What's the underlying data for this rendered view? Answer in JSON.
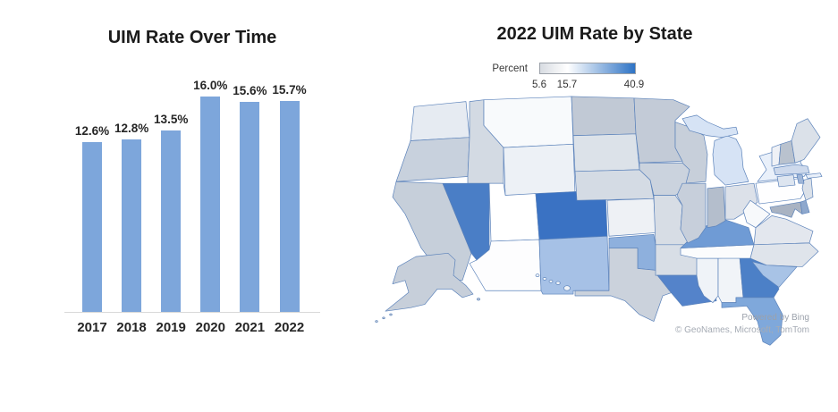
{
  "bar_chart": {
    "title": "UIM Rate Over Time"
  },
  "map": {
    "title": "2022 UIM Rate by State"
  },
  "chart_data": [
    {
      "type": "bar",
      "title": "UIM Rate Over Time",
      "categories": [
        "2017",
        "2018",
        "2019",
        "2020",
        "2021",
        "2022"
      ],
      "values": [
        12.6,
        12.8,
        13.5,
        16.0,
        15.6,
        15.7
      ],
      "data_labels": [
        "12.6%",
        "12.8%",
        "13.5%",
        "16.0%",
        "15.6%",
        "15.7%"
      ],
      "xlabel": "",
      "ylabel": "",
      "ylim": [
        0,
        17
      ],
      "grid": false,
      "y_axis_shown": false,
      "bar_color": "#7da6db",
      "axis_line_color": "#d9d9d9"
    },
    {
      "type": "heatmap",
      "subtype": "choropleth-us-states",
      "title": "2022 UIM Rate by State",
      "legend": {
        "label": "Percent",
        "min": 5.6,
        "mid": 15.7,
        "max": 40.9,
        "position": "top-left",
        "gradient": [
          "#d8dce2",
          "#ffffff",
          "#2e73c5"
        ],
        "mid_position_pct": 29
      },
      "attribution_line1": "Powered by Bing",
      "attribution_line2": "© GeoNames, Microsoft, TomTom",
      "state_colors": [
        {
          "id": "WA",
          "color": "#e6ebf2"
        },
        {
          "id": "OR",
          "color": "#c8d1dd"
        },
        {
          "id": "CA",
          "color": "#c6cfda"
        },
        {
          "id": "ID",
          "color": "#d3dae3"
        },
        {
          "id": "MT",
          "color": "#f8fafc"
        },
        {
          "id": "WY",
          "color": "#edf1f6"
        },
        {
          "id": "NV",
          "color": "#4a7ec6"
        },
        {
          "id": "UT",
          "color": "#ffffff"
        },
        {
          "id": "CO",
          "color": "#3a72c3"
        },
        {
          "id": "AZ",
          "color": "#fdfdfe"
        },
        {
          "id": "NM",
          "color": "#a6c1e6"
        },
        {
          "id": "ND",
          "color": "#c1c9d5"
        },
        {
          "id": "SD",
          "color": "#dce2e9"
        },
        {
          "id": "NE",
          "color": "#d4dbe4"
        },
        {
          "id": "KS",
          "color": "#eef1f5"
        },
        {
          "id": "OK",
          "color": "#8eb0dd"
        },
        {
          "id": "TX",
          "color": "#cbd2dc"
        },
        {
          "id": "MN",
          "color": "#c3cbd7"
        },
        {
          "id": "WI",
          "color": "#c7cfda"
        },
        {
          "id": "IA",
          "color": "#cbd3de"
        },
        {
          "id": "MO",
          "color": "#d7dde5"
        },
        {
          "id": "AR",
          "color": "#d8dee6"
        },
        {
          "id": "LA",
          "color": "#5483ca"
        },
        {
          "id": "MS",
          "color": "#eff3f8"
        },
        {
          "id": "AL",
          "color": "#f1f4f8"
        },
        {
          "id": "GA",
          "color": "#4c80c7"
        },
        {
          "id": "FL",
          "color": "#7fa8db"
        },
        {
          "id": "TN",
          "color": "#fbfcfd"
        },
        {
          "id": "KY",
          "color": "#6f9bd5"
        },
        {
          "id": "IL",
          "color": "#c7cfdb"
        },
        {
          "id": "IN",
          "color": "#b4becc"
        },
        {
          "id": "OH",
          "color": "#dce1e9"
        },
        {
          "id": "MI",
          "color": "#d6e3f5"
        },
        {
          "id": "WV",
          "color": "#f7f9fb"
        },
        {
          "id": "VA",
          "color": "#e3e7ee"
        },
        {
          "id": "NC",
          "color": "#dfe4eb"
        },
        {
          "id": "SC",
          "color": "#a8c3e6"
        },
        {
          "id": "PA",
          "color": "#fefeff"
        },
        {
          "id": "NY",
          "color": "#e9f0fa"
        },
        {
          "id": "NJ",
          "color": "#dbe1e9"
        },
        {
          "id": "MD",
          "color": "#a9b3c2"
        },
        {
          "id": "DE",
          "color": "#8ea8cd"
        },
        {
          "id": "VT",
          "color": "#eff1f6"
        },
        {
          "id": "NH",
          "color": "#b9c2ce"
        },
        {
          "id": "ME",
          "color": "#dbe1e9"
        },
        {
          "id": "MA",
          "color": "#cdd9ec"
        },
        {
          "id": "CT",
          "color": "#dde5f0"
        },
        {
          "id": "RI",
          "color": "#9fb6d8"
        },
        {
          "id": "AK",
          "color": "#c7cfda"
        },
        {
          "id": "HI",
          "color": "#eff3f8"
        }
      ]
    }
  ]
}
